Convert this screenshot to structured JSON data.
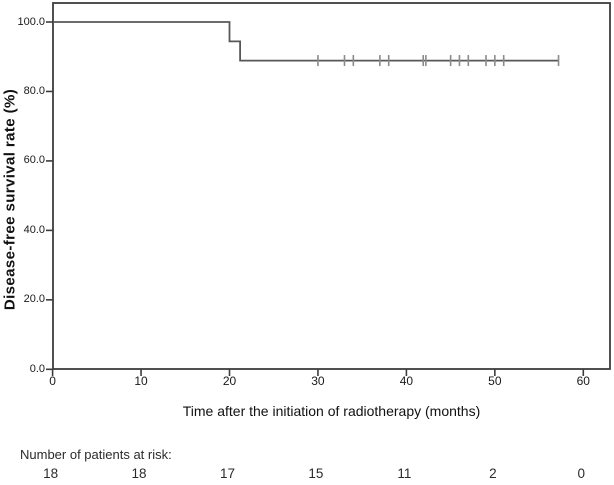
{
  "chart_data": {
    "type": "line",
    "subtype": "kaplan-meier-step-curve",
    "title": "",
    "xlabel": "Time after the initiation of radiotherapy (months)",
    "ylabel": "Disease-free survival rate (%)",
    "xlim": [
      0,
      63
    ],
    "ylim": [
      0,
      105.5
    ],
    "grid": false,
    "legend": null,
    "x_ticks": [
      0,
      10,
      20,
      30,
      40,
      50,
      60
    ],
    "x_tick_labels": [
      "0",
      "10",
      "20",
      "30",
      "40",
      "50",
      "60"
    ],
    "y_ticks": [
      0,
      20,
      40,
      60,
      80,
      100
    ],
    "y_tick_labels": [
      "0.0",
      "20.0",
      "40.0",
      "60.0",
      "80.0",
      "100.0"
    ],
    "series": [
      {
        "name": "disease-free-survival",
        "step_points": [
          [
            0,
            100.0
          ],
          [
            20,
            100.0
          ],
          [
            20,
            94.4
          ],
          [
            21.2,
            94.4
          ],
          [
            21.2,
            88.9
          ],
          [
            57.2,
            88.9
          ]
        ],
        "censor_marks_months": [
          30,
          33,
          34,
          37,
          38,
          41.9,
          42.2,
          45,
          46,
          47,
          49,
          50,
          51,
          57.2
        ],
        "censor_level_pct": 88.9
      }
    ],
    "at_risk": {
      "label": "Number of patients at risk:",
      "times": [
        0,
        10,
        20,
        30,
        40,
        50,
        60
      ],
      "counts": [
        "18",
        "18",
        "17",
        "15",
        "11",
        "2",
        "0"
      ]
    }
  },
  "colors": {
    "background": "#ffffff",
    "axis": "#3d3d3d",
    "curve": "#575757",
    "censor": "#8a8a8a",
    "text": "#1a1a1a"
  }
}
